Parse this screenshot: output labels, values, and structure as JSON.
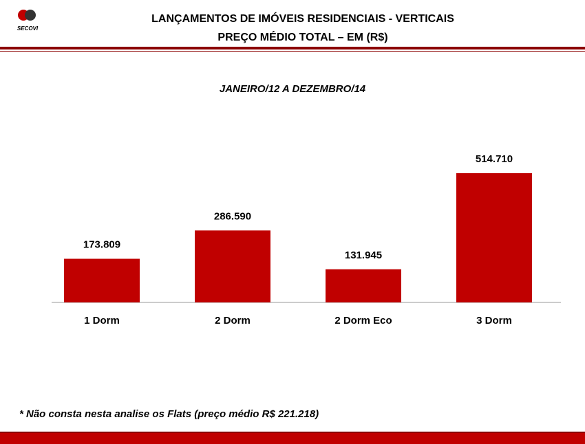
{
  "logo_text": "SECOVI",
  "chart_data": {
    "type": "bar",
    "title": [
      "LANÇAMENTOS DE IMÓVEIS RESIDENCIAIS  - VERTICAIS",
      "PREÇO MÉDIO TOTAL – EM (R$)"
    ],
    "subtitle": "JANEIRO/12 A DEZEMBRO/14",
    "categories": [
      "1 Dorm",
      "2 Dorm",
      "2 Dorm Eco",
      "3 Dorm"
    ],
    "values": [
      173809,
      286590,
      131945,
      514710
    ],
    "value_labels": [
      "173.809",
      "286.590",
      "131.945",
      "514.710"
    ],
    "color": "#c00000",
    "note": "* Não consta nesta analise os Flats (preço médio R$ 221.218)"
  }
}
